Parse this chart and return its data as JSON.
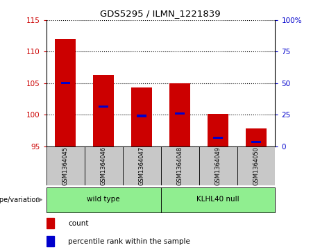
{
  "title": "GDS5295 / ILMN_1221839",
  "samples": [
    "GSM1364045",
    "GSM1364046",
    "GSM1364047",
    "GSM1364048",
    "GSM1364049",
    "GSM1364050"
  ],
  "count_values": [
    112.0,
    106.3,
    104.3,
    105.0,
    100.1,
    97.8
  ],
  "percentile_values": [
    105.0,
    101.3,
    99.8,
    100.2,
    96.3,
    95.7
  ],
  "ylim_left": [
    95,
    115
  ],
  "ylim_right": [
    0,
    100
  ],
  "yticks_left": [
    95,
    100,
    105,
    110,
    115
  ],
  "yticks_right": [
    0,
    25,
    50,
    75,
    100
  ],
  "ytick_labels_right": [
    "0",
    "25",
    "50",
    "75",
    "100%"
  ],
  "bar_color_red": "#CC0000",
  "bar_color_blue": "#0000CC",
  "sample_box_color": "#C8C8C8",
  "green_color": "#90EE90",
  "group_labels": [
    "wild type",
    "KLHL40 null"
  ],
  "genotype_label": "genotype/variation",
  "legend_count": "count",
  "legend_pct": "percentile rank within the sample",
  "fig_width": 4.61,
  "fig_height": 3.63
}
